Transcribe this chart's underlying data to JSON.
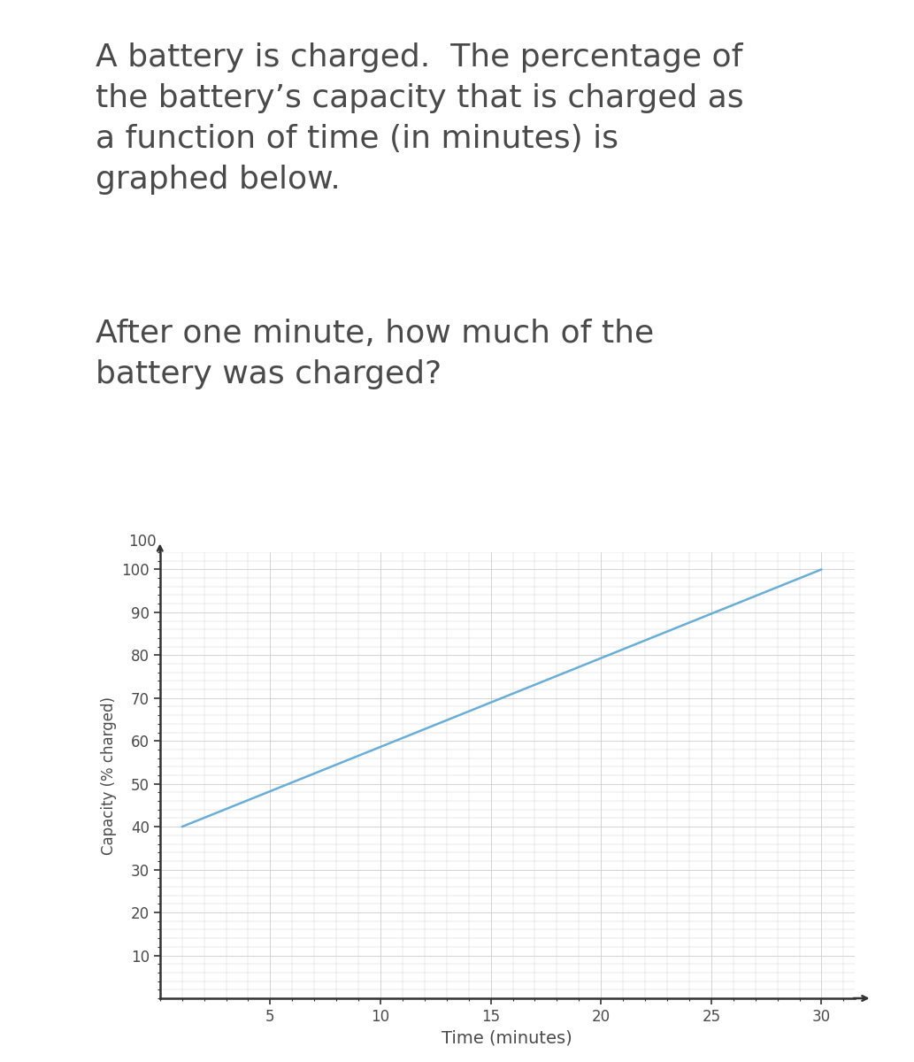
{
  "text_paragraph1": "A battery is charged.  The percentage of\nthe battery’s capacity that is charged as\na function of time (in minutes) is\ngraphed below.",
  "text_paragraph2": "After one minute, how much of the\nbattery was charged?",
  "text_color": "#4a4a4a",
  "text_fontsize": 26,
  "line_x": [
    1,
    30
  ],
  "line_y": [
    40,
    100
  ],
  "line_color": "#6aaed6",
  "line_width": 1.8,
  "xlim": [
    0,
    31.5
  ],
  "ylim": [
    0,
    104
  ],
  "xticks": [
    5,
    10,
    15,
    20,
    25,
    30
  ],
  "yticks": [
    10,
    20,
    30,
    40,
    50,
    60,
    70,
    80,
    90,
    100
  ],
  "xlabel": "Time (minutes)",
  "ylabel": "Capacity (% charged)",
  "xlabel_fontsize": 14,
  "ylabel_fontsize": 12,
  "tick_fontsize": 12,
  "grid_color": "#cccccc",
  "grid_linewidth": 0.6,
  "axis_color": "#333333",
  "background_color": "#ffffff"
}
